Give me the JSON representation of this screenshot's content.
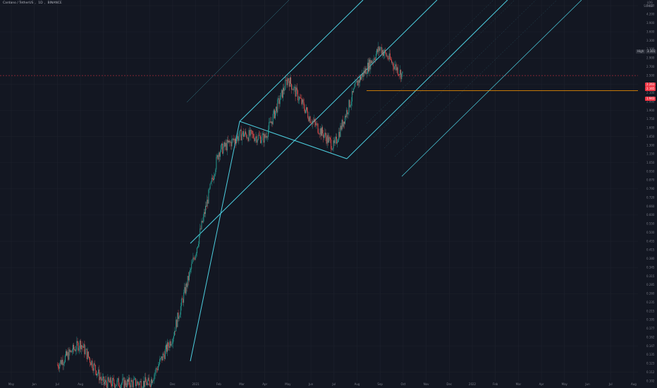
{
  "header": {
    "symbol_title": "Cardano / TetherUS",
    "interval": "1D",
    "exchange": "BINANCE"
  },
  "scale_toggle": {
    "line1": "LOG",
    "line2": "SCALE"
  },
  "tags": {
    "high": {
      "label": "High",
      "value": "3.101",
      "bg": "#2a2e39"
    },
    "price1": {
      "value": "2.263",
      "bg": "#f23645"
    },
    "price2": {
      "value": "2.165",
      "bg": "#f23645"
    },
    "price3": {
      "value": "1.943",
      "bg": "#f23645"
    }
  },
  "colors": {
    "background": "#131722",
    "grid": "#1e222d",
    "up": "#26a69a",
    "down": "#ef5350",
    "channel": "#4dd0e1",
    "support": "#ff9800",
    "current": "#f23645"
  },
  "chart_data": {
    "type": "candlestick",
    "scale": "log",
    "x_ticks": [
      "May",
      "Jun",
      "Jul",
      "Aug",
      "Sep",
      "Oct",
      "Nov",
      "Dec",
      "2021",
      "Feb",
      "Mar",
      "Apr",
      "May",
      "Jun",
      "Jul",
      "Aug",
      "Sep",
      "Oct",
      "Nov",
      "Dec",
      "2022",
      "Feb",
      "Mar",
      "Apr",
      "May",
      "Jun",
      "Jul",
      "Aug"
    ],
    "y_ticks": [
      "4.600",
      "4.200",
      "3.900",
      "3.600",
      "3.300",
      "3.100",
      "2.900",
      "2.700",
      "2.500",
      "2.300",
      "2.100",
      "2.000",
      "1.900",
      "1.750",
      "1.600",
      "1.450",
      "1.300",
      "1.150",
      "1.050",
      "0.950",
      "0.870",
      "0.790",
      "0.720",
      "0.660",
      "0.600",
      "0.550",
      "0.500",
      "0.455",
      "0.415",
      "0.380",
      "0.345",
      "0.315",
      "0.285",
      "0.260",
      "0.235",
      "0.215",
      "0.195",
      "0.177",
      "0.162",
      "0.147",
      "0.135",
      "0.123",
      "0.112",
      "0.102"
    ],
    "price_path": [
      {
        "t": "2020-07",
        "close": 0.12
      },
      {
        "t": "2020-08",
        "close": 0.15
      },
      {
        "t": "2020-09",
        "close": 0.1
      },
      {
        "t": "2020-10",
        "close": 0.1
      },
      {
        "t": "2020-11",
        "close": 0.1
      },
      {
        "t": "2020-12",
        "close": 0.16
      },
      {
        "t": "2021-01",
        "close": 0.38
      },
      {
        "t": "2021-02",
        "close": 1.05
      },
      {
        "t": "2021-03",
        "close": 1.25
      },
      {
        "t": "2021-04",
        "close": 1.2
      },
      {
        "t": "2021-05",
        "close": 2.2
      },
      {
        "t": "2021-06",
        "close": 1.45
      },
      {
        "t": "2021-07",
        "close": 1.1
      },
      {
        "t": "2021-08",
        "close": 2.1
      },
      {
        "t": "2021-09",
        "close": 3.0
      },
      {
        "t": "2021-10",
        "close": 2.25
      }
    ]
  }
}
